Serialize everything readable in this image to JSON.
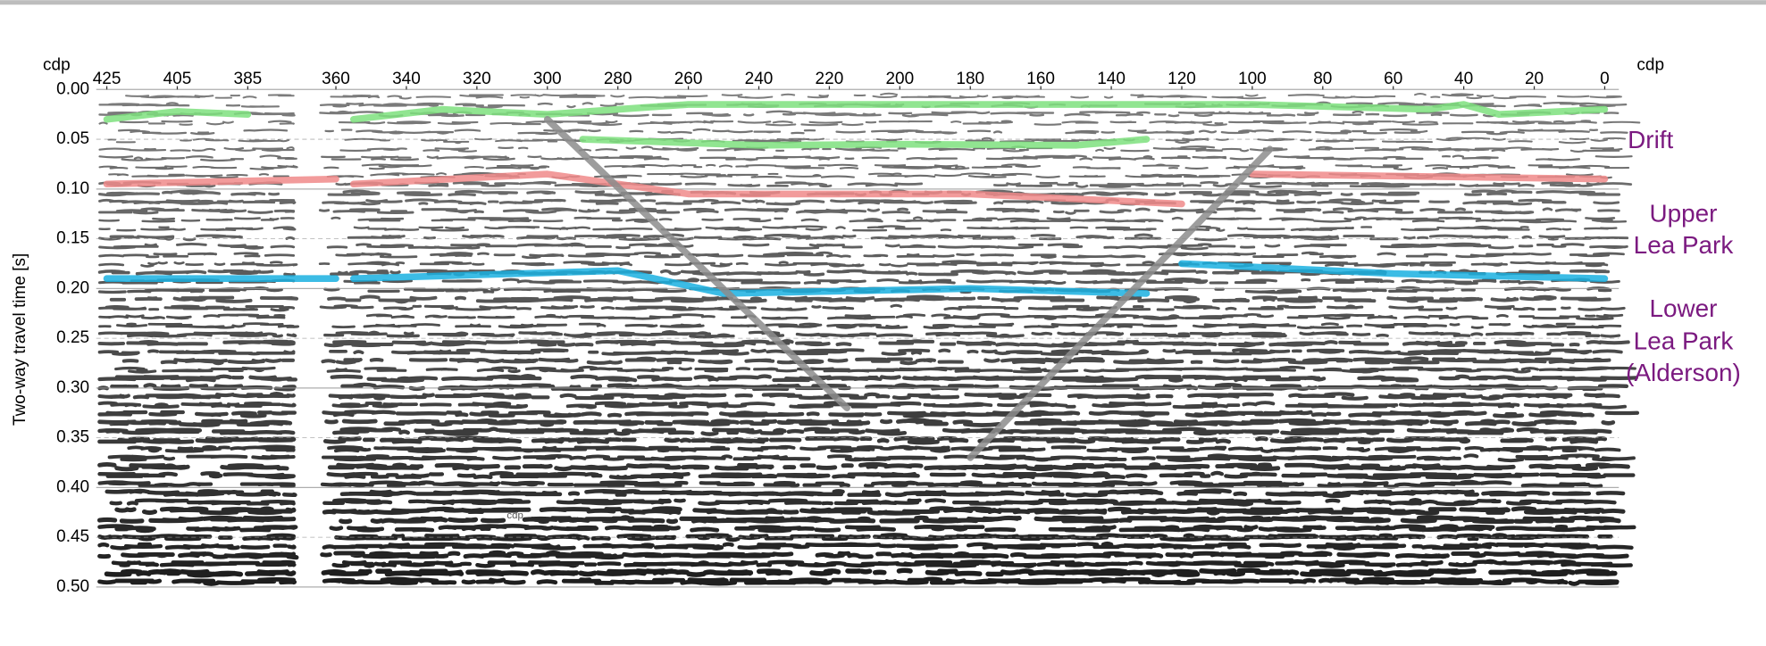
{
  "chart_data": {
    "type": "seismic",
    "xlabel": "cdp",
    "ylabel": "Two-way travel time [s]",
    "inner_label": "cdp",
    "xlim": [
      428,
      -4
    ],
    "xticks": [
      425,
      405,
      385,
      360,
      340,
      320,
      300,
      280,
      260,
      240,
      220,
      200,
      180,
      160,
      140,
      120,
      100,
      80,
      60,
      40,
      20,
      0
    ],
    "ylim": [
      0,
      0.5
    ],
    "yticks": [
      {
        "value": 0,
        "label": "0.00"
      },
      {
        "value": 0.05,
        "label": "0.05"
      },
      {
        "value": 0.1,
        "label": "0.10"
      },
      {
        "value": 0.15,
        "label": "0.15"
      },
      {
        "value": 0.2,
        "label": "0.20"
      },
      {
        "value": 0.25,
        "label": "0.25"
      },
      {
        "value": 0.3,
        "label": "0.30"
      },
      {
        "value": 0.35,
        "label": "0.35"
      },
      {
        "value": 0.4,
        "label": "0.40"
      },
      {
        "value": 0.45,
        "label": "0.45"
      },
      {
        "value": 0.5,
        "label": "0.50"
      }
    ],
    "grid": true,
    "annotations": [
      [
        "Drift"
      ],
      [
        "Upper",
        "Lea Park"
      ],
      [
        "Lower",
        "Lea Park",
        "(Alderson)"
      ]
    ],
    "annotation_color": "#7b1a80",
    "series": [
      {
        "color": "#7ee07e",
        "x": [
          425,
          405,
          385,
          null,
          355,
          330,
          300,
          260,
          200,
          100,
          50,
          40,
          30,
          0
        ],
        "values": [
          0.03,
          0.022,
          0.025,
          null,
          0.03,
          0.02,
          0.025,
          0.015,
          0.015,
          0.015,
          0.02,
          0.015,
          0.025,
          0.02
        ]
      },
      {
        "color": "#7ee07e",
        "x": [
          290,
          240,
          200,
          150,
          130
        ],
        "values": [
          0.05,
          0.056,
          0.055,
          0.056,
          0.05
        ]
      },
      {
        "color": "#f08a8a",
        "x": [
          425,
          360,
          null,
          355,
          300,
          260,
          180,
          120,
          null,
          100,
          0
        ],
        "values": [
          0.095,
          0.09,
          null,
          0.095,
          0.085,
          0.105,
          0.105,
          0.115,
          null,
          0.085,
          0.09
        ]
      },
      {
        "color": "#1ab0e0",
        "x": [
          425,
          360,
          null,
          355,
          280,
          250,
          180,
          130,
          null,
          120,
          60,
          0
        ],
        "values": [
          0.19,
          0.19,
          null,
          0.19,
          0.182,
          0.205,
          0.2,
          0.205,
          null,
          0.175,
          0.185,
          0.19
        ]
      },
      {
        "color": "#8c8c8c",
        "x": [
          300,
          215
        ],
        "values": [
          0.03,
          0.32
        ]
      },
      {
        "color": "#8c8c8c",
        "x": [
          180,
          95
        ],
        "values": [
          0.37,
          0.06
        ]
      }
    ]
  }
}
